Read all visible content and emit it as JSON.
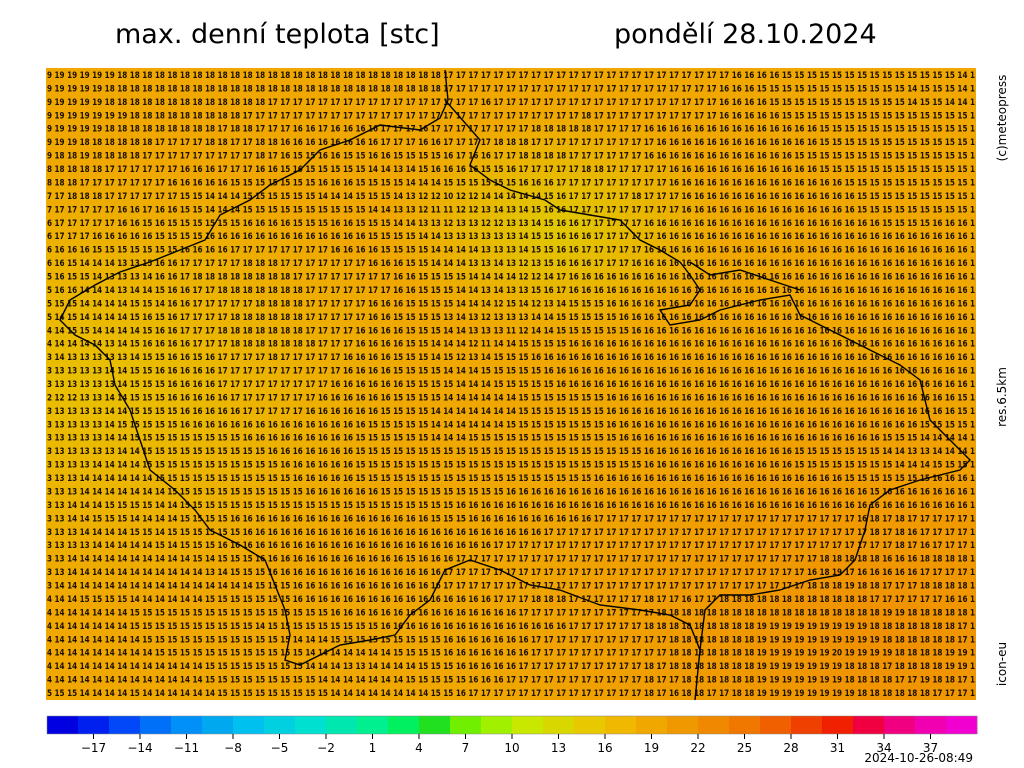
{
  "header": {
    "title": "max. denní teplota [stc]",
    "date": "pondělí 28.10.2024"
  },
  "side": {
    "copyright": "(c)meteopress",
    "resolution": "res.6.5km",
    "model": "icon-eu"
  },
  "footer": {
    "timestamp": "2024-10-26-08:49"
  },
  "map": {
    "rows": [
      "9 19 19 19 19 19 18 18 18 18 18 18 18 18 18 18 18 18 18 18 18 18 18 18 18 18 18 18 18 18 18 18 17 17 17 17 17 17 17 17 17 17 17 17 17 17 17 17 17 17 17 17 17 17 17 16 16 16 16 15 15 15 15 15 15 15 15 15 15 15 15 15 15 14 1",
      "9 19 19 19 19 18 18 18 18 18 18 18 18 18 18 18 18 18 18 18 18 18 18 18 18 18 18 18 18 18 18 18 17 17 17 17 17 17 17 17 17 17 17 17 17 17 17 17 17 17 17 17 17 17 16 16 16 15 15 15 15 15 15 15 15 15 15 15 15 14 15 15 15 14 1",
      "9 19 19 19 19 18 18 18 18 18 18 18 18 18 18 18 18 18 17 17 17 17 17 17 17 17 17 17 17 17 17 17 17 17 17 16 17 17 17 17 17 17 17 17 17 17 17 17 17 17 17 17 17 17 16 16 16 16 15 15 15 15 15 15 15 15 15 15 15 14 15 15 14 14 1",
      "9 19 19 19 19 19 19 18 18 18 18 18 18 18 18 18 17 17 17 17 17 17 17 17 17 17 17 17 17 17 17 17 17 17 17 17 17 17 17 17 17 17 17 18 17 17 17 17 17 17 17 17 17 17 16 16 16 16 16 15 15 15 15 15 15 15 15 15 15 15 15 15 15 15 1",
      "9 19 19 19 19 18 18 18 18 18 18 18 18 18 17 18 18 17 17 17 16 16 17 16 16 16 16 17 17 17 16 17 17 17 17 17 17 17 17 18 18 18 18 18 17 17 17 17 16 16 16 16 16 16 16 16 16 16 16 16 16 16 15 15 15 15 15 15 15 15 15 15 15 15 1",
      "9 19 19 18 18 18 18 18 18 17 17 17 17 18 18 17 17 18 18 16 16 16 16 16 16 16 16 17 17 17 16 16 17 17 17 17 18 18 18 17 17 17 17 17 17 17 17 17 17 16 16 16 16 16 16 16 16 16 16 16 16 16 15 15 15 15 15 15 15 15 15 15 15 15 1",
      "9 18 18 19 18 18 18 18 17 17 17 17 17 17 17 17 17 18 17 16 15 15 16 16 15 15 16 16 15 15 15 15 16 17 16 16 17 17 18 18 18 18 17 17 17 17 17 17 16 16 16 16 16 16 16 16 16 16 16 16 15 15 15 15 15 15 15 15 15 15 15 15 15 15 1",
      "8 18 18 18 18 17 17 17 17 17 17 16 16 16 17 17 17 16 16 15 16 15 15 15 15 15 14 14 13 14 15 16 16 16 16 15 15 16 17 17 17 17 17 18 18 17 17 17 17 17 16 16 16 16 16 16 16 16 16 16 16 16 15 15 15 15 15 15 15 15 15 15 15 15 1",
      "8 18 18 17 17 17 17 17 17 17 16 16 16 16 16 15 15 15 15 15 15 15 16 16 16 15 15 15 15 14 14 14 15 15 15 15 15 15 16 16 16 17 17 17 17 17 17 17 17 17 16 16 16 16 16 16 16 16 16 16 16 16 16 16 15 15 15 15 15 15 15 15 15 15 1",
      "7 17 18 18 18 17 17 17 17 17 17 15 15 14 14 14 15 15 15 15 15 15 14 14 14 15 15 15 14 13 12 12 10 12 12 14 14 14 14 14 15 16 17 17 17 17 17 18 17 17 17 16 16 16 16 16 16 16 16 16 16 16 16 16 16 15 15 15 15 15 15 15 15 15 1",
      "7 17 17 17 17 17 16 16 17 16 16 15 15 14 14 14 15 15 15 15 15 15 15 15 15 15 14 14 13 13 12 11 11 12 12 13 14 13 14 15 16 16 17 17 17 17 17 17 17 17 17 16 16 16 16 16 16 16 16 16 16 16 16 16 16 15 15 15 15 15 15 15 15 15 1",
      "6 17 17 17 17 17 16 16 15 16 15 15 15 15 15 15 16 16 16 16 15 15 15 16 16 15 15 15 14 14 13 13 12 13 13 12 12 13 13 14 15 16 16 17 17 17 17 17 16 16 16 16 16 16 16 16 16 16 16 16 16 16 16 16 16 16 16 15 15 15 15 16 16 16 1",
      "6 17 17 17 16 16 16 16 16 15 15 15 15 16 16 16 16 16 16 16 16 16 16 16 16 16 15 15 15 15 14 14 13 13 13 13 13 13 14 15 15 16 16 16 17 17 17 17 17 16 16 16 16 16 16 16 16 16 16 16 16 16 16 16 16 16 16 16 16 16 16 16 16 16 1",
      "6 16 16 16 15 15 15 15 15 15 15 16 16 16 16 17 17 17 17 17 17 17 17 16 16 16 16 15 15 15 15 14 14 14 14 13 13 13 14 15 15 16 16 17 17 17 17 17 16 16 16 16 16 16 16 16 16 16 16 16 16 16 16 16 16 16 16 16 16 16 16 16 16 16 1",
      "6 16 15 14 14 14 13 13 15 16 16 17 17 17 17 17 18 18 18 17 17 17 17 17 17 17 16 16 16 15 15 14 14 14 13 13 14 13 12 13 15 16 16 16 17 17 17 16 16 16 16 16 16 16 16 16 16 16 16 16 16 16 16 16 16 16 16 16 16 16 16 16 16 16 1",
      "5 16 15 15 14 13 13 13 14 16 16 17 18 18 18 18 18 18 18 18 17 17 17 17 17 17 17 17 16 16 15 15 15 15 14 14 14 14 12 12 14 17 16 16 16 16 16 16 16 16 16 16 16 16 16 16 16 16 16 16 16 16 16 16 16 16 16 16 16 16 16 16 16 16 1",
      "5 16 16 14 14 14 13 14 14 15 16 16 17 17 18 18 18 18 18 18 18 17 17 17 17 17 17 17 16 16 15 15 15 14 14 13 14 13 13 15 16 17 16 16 16 16 16 16 16 16 16 16 16 16 16 16 16 16 16 16 16 16 16 16 16 16 16 16 16 16 16 16 16 16 1",
      "5 15 15 14 14 14 14 15 15 14 16 16 17 17 17 17 17 18 18 18 18 17 17 17 17 17 16 16 16 15 15 15 15 14 14 14 12 15 14 12 13 14 15 15 15 16 16 16 16 16 16 16 16 16 16 16 16 16 16 16 16 16 16 16 16 16 16 16 16 16 16 16 16 16 1",
      "5 14 15 14 14 14 14 15 16 15 16 17 17 17 17 18 18 18 18 18 18 17 17 17 17 17 16 16 15 15 15 15 13 14 13 12 13 13 13 14 14 15 15 15 15 15 16 16 16 16 16 16 16 16 16 16 16 16 16 16 16 16 16 16 16 16 16 16 16 16 16 16 16 16 1",
      "4 14 15 15 14 14 14 14 15 16 16 17 17 17 18 18 18 18 18 18 18 17 17 17 17 16 16 16 16 15 15 15 14 14 13 13 13 11 12 14 14 15 15 15 15 15 15 16 16 16 16 16 16 16 16 16 16 16 16 16 16 16 16 16 16 16 16 16 16 16 16 16 16 16 1",
      "4 14 14 14 14 13 14 15 16 16 16 16 17 17 17 18 18 18 18 18 18 18 17 17 17 16 16 16 16 15 15 14 14 14 12 11 14 14 15 15 15 15 16 16 16 16 16 16 16 16 16 16 16 16 16 16 16 16 16 16 16 16 16 16 16 16 16 16 16 16 16 16 16 16 1",
      "3 14 13 13 13 13 13 14 15 15 16 16 15 16 17 17 17 17 18 17 17 17 17 17 16 16 16 16 15 15 15 14 15 12 13 14 15 15 15 16 16 16 16 16 16 16 16 16 16 16 16 16 16 16 16 16 16 16 16 16 16 16 16 16 16 16 16 16 16 16 16 16 16 16 1",
      "3 13 13 13 13 14 14 15 15 16 16 16 16 16 17 17 17 17 17 17 17 17 17 17 16 16 16 16 15 15 15 15 14 14 14 15 15 15 15 15 16 16 16 16 16 16 16 16 16 16 16 16 16 16 16 16 16 16 16 16 16 16 16 16 16 16 16 16 16 16 16 16 16 16 1",
      "3 13 13 13 13 13 14 15 15 15 16 16 16 16 17 17 17 17 17 17 17 17 17 16 16 16 16 16 16 15 15 15 15 14 14 14 15 15 15 15 15 16 16 16 16 16 16 16 16 16 16 16 16 16 16 16 16 16 16 16 16 16 16 16 16 16 16 16 16 16 16 16 16 16 1",
      "2 12 12 13 13 14 14 15 15 15 16 16 16 16 16 17 17 17 17 17 17 17 16 16 16 16 16 16 15 15 15 15 14 14 14 14 14 14 15 15 15 15 15 15 15 16 16 16 16 16 16 16 16 16 16 16 16 16 16 16 16 16 16 16 16 16 16 16 16 16 16 16 16 15 1",
      "3 13 13 13 13 14 14 15 15 15 15 16 16 16 16 16 17 17 17 17 17 16 16 16 16 16 16 15 15 15 15 14 14 14 14 14 14 14 15 15 15 15 15 15 15 16 16 16 16 16 16 16 16 16 16 16 16 16 16 16 16 16 16 16 16 16 16 16 16 16 16 16 16 15 1",
      "3 13 13 13 13 14 15 15 15 15 15 16 16 16 16 16 16 16 16 16 16 16 16 16 16 16 15 15 15 15 15 14 14 14 14 14 14 15 15 15 15 15 15 15 15 16 16 16 16 16 16 16 16 16 16 16 16 16 16 16 16 16 16 16 16 16 16 16 16 16 15 15 15 15 1",
      "3 13 13 13 13 14 14 15 15 15 15 15 15 15 15 15 16 16 16 16 16 16 16 16 16 15 15 15 15 15 15 14 14 14 15 15 15 15 15 15 15 15 15 15 15 15 16 16 16 16 16 16 16 16 16 16 16 16 16 16 16 16 16 16 16 16 16 15 15 15 14 14 14 14 1",
      "3 13 13 13 13 13 14 14 15 15 15 15 15 15 15 15 15 15 16 16 16 16 16 16 16 15 15 15 15 15 15 15 15 15 15 15 15 15 15 15 15 15 15 15 15 15 15 15 16 16 16 16 16 16 16 16 16 16 16 16 15 15 15 15 15 15 15 14 14 13 13 14 14 14 1",
      "3 13 13 13 14 14 14 14 15 15 15 15 15 15 15 15 15 15 15 16 16 16 16 16 16 15 15 15 15 15 15 15 15 15 15 15 15 15 15 15 15 15 15 15 15 15 15 15 16 16 16 16 16 16 16 16 16 16 16 16 15 15 15 15 15 15 15 15 14 14 14 15 15 15 1",
      "3 13 13 14 14 14 14 14 14 15 15 15 15 15 15 15 15 15 15 15 16 16 16 16 16 15 15 15 15 15 15 15 15 15 15 15 15 15 15 15 15 15 15 15 16 16 16 16 16 16 16 16 16 16 16 16 16 16 16 16 16 16 16 16 15 15 15 15 15 15 15 16 16 16 1",
      "3 13 13 14 14 14 14 14 14 14 15 15 15 15 15 15 15 15 15 15 15 16 16 16 16 16 16 15 15 15 15 15 15 15 15 15 15 16 16 16 16 16 16 16 16 16 16 16 16 16 16 16 16 16 16 16 16 16 16 16 16 16 16 16 16 16 15 16 16 16 16 16 16 16 1",
      "3 13 14 14 14 15 15 15 15 14 14 15 15 15 15 15 15 15 15 15 15 15 15 15 15 15 15 15 15 15 15 15 15 16 16 16 16 16 16 16 16 16 16 16 16 16 16 16 16 16 16 16 16 16 16 16 16 16 16 16 16 16 16 16 16 16 16 16 16 16 16 16 16 16 1",
      "3 13 14 14 15 15 15 14 14 14 14 15 15 15 15 16 16 16 16 16 16 16 16 16 16 16 16 16 16 16 16 15 15 15 16 16 16 16 16 16 16 16 16 16 17 17 17 17 17 17 17 17 17 17 17 17 17 17 17 17 17 17 17 17 17 16 18 17 18 17 17 17 17 17 1",
      "3 13 13 14 14 14 14 15 15 14 15 15 15 15 15 15 16 16 16 16 16 16 16 16 16 16 16 16 16 16 16 16 16 16 16 16 16 16 16 16 17 17 17 17 17 17 17 17 17 17 17 17 17 17 17 17 17 17 17 17 17 17 17 17 17 17 18 17 18 16 17 17 17 17 1",
      "3 13 13 13 14 14 14 14 14 15 14 15 15 15 16 16 16 16 16 16 16 16 16 16 16 16 16 16 16 16 16 16 16 16 16 16 17 17 17 17 17 17 17 17 17 17 17 17 17 17 17 17 17 17 17 17 17 17 17 17 17 17 17 17 17 17 17 17 18 17 16 17 17 17 1",
      "3 13 14 14 14 14 14 14 14 14 14 14 15 14 15 15 15 16 16 16 16 16 16 16 16 16 16 16 16 15 16 16 16 17 17 17 17 17 17 17 17 17 17 17 17 17 17 17 17 17 17 17 17 17 17 17 17 17 17 17 17 17 18 18 18 18 18 16 16 16 18 18 18 18 1",
      "3 13 14 14 14 14 14 14 14 14 14 14 14 13 14 15 15 15 16 16 16 16 16 16 16 16 16 16 16 16 16 16 17 17 17 17 17 17 17 17 17 17 17 17 17 17 17 17 17 17 17 17 17 17 17 17 17 17 17 17 17 16 18 19 17 16 16 16 16 16 17 17 17 17 1",
      "3 14 14 14 14 14 14 14 14 14 14 14 14 14 14 14 14 15 15 15 16 16 16 16 16 16 16 16 16 16 16 16 17 17 17 17 17 17 17 17 17 17 17 17 17 17 17 17 17 17 17 17 17 17 17 17 17 17 17 17 17 18 18 18 19 18 18 17 17 17 18 18 18 18 1",
      "4 14 14 15 15 15 15 14 14 14 14 14 14 15 15 15 15 15 15 15 16 16 16 16 16 16 16 16 16 16 16 16 16 16 16 16 17 17 17 18 18 18 17 17 17 17 17 17 18 17 17 16 17 17 18 18 18 18 18 18 18 18 18 18 18 18 17 17 17 17 17 17 16 16 1",
      "4 14 14 14 14 14 14 15 15 15 15 15 15 15 15 15 15 15 15 15 15 15 15 16 16 16 16 16 16 16 16 16 16 16 16 16 16 16 17 17 17 17 17 17 17 17 17 17 17 18 18 18 18 18 18 18 18 18 18 18 18 18 18 18 18 18 18 19 19 18 18 18 18 18 1",
      "4 14 14 14 14 14 14 15 15 15 15 15 15 15 15 15 15 14 15 15 15 15 15 15 15 15 15 16 16 16 16 16 16 16 16 16 16 16 16 16 16 16 17 17 17 17 17 17 18 18 18 18 18 18 18 18 18 19 19 19 19 19 19 19 19 19 18 18 18 18 18 18 18 17 1",
      "4 14 14 14 14 14 14 14 15 15 15 15 15 15 15 15 15 15 15 15 14 14 14 15 15 15 15 15 15 15 15 15 16 16 16 16 16 16 16 17 17 17 17 17 17 17 17 17 17 17 18 18 18 18 18 18 18 19 19 19 19 19 19 19 19 19 19 18 18 18 18 18 18 17 1",
      "4 14 14 14 14 14 14 14 14 15 15 15 15 15 15 15 15 15 15 15 15 14 14 14 14 14 14 14 15 15 15 15 16 16 16 16 16 16 16 17 17 17 17 17 17 17 17 17 17 17 18 18 18 18 18 18 18 19 19 19 19 19 19 20 19 19 19 19 18 18 18 18 19 19 1",
      "4 14 14 14 14 14 14 14 14 14 14 14 14 15 15 15 15 15 15 15 15 14 14 14 13 13 14 14 14 14 15 15 15 16 16 16 16 16 17 17 17 17 17 17 17 17 17 17 18 17 18 18 18 18 18 18 18 19 19 19 19 19 19 19 18 18 18 17 18 18 18 18 19 19 1",
      "4 14 14 14 14 14 14 14 14 14 14 14 14 15 15 15 15 15 15 15 15 15 14 14 14 14 14 14 14 15 15 15 15 15 16 16 16 17 17 17 17 17 17 17 17 17 17 17 18 17 17 18 18 18 18 18 18 19 19 19 19 19 19 19 18 18 18 18 17 17 19 18 18 17 1",
      "5 15 15 14 14 14 14 15 14 14 14 14 14 14 15 15 15 15 15 15 15 15 15 14 14 14 14 14 14 14 14 15 15 16 17 17 17 17 17 17 17 17 17 17 17 17 17 17 18 17 16 18 18 17 17 18 18 19 19 19 19 19 19 19 19 18 18 18 18 18 18 17 17 17 1"
    ]
  },
  "colorbar": {
    "min": -20,
    "max": 40,
    "colors": [
      "#0000e0",
      "#0020f0",
      "#0048f8",
      "#0070f8",
      "#0090f8",
      "#00a8f0",
      "#00c0f0",
      "#00d0e0",
      "#00e0d0",
      "#00e8b0",
      "#00f090",
      "#00f060",
      "#20e020",
      "#70f000",
      "#a0f000",
      "#c8e800",
      "#d8d800",
      "#e8c800",
      "#f0b800",
      "#f0a800",
      "#f09800",
      "#f08800",
      "#f07800",
      "#f06000",
      "#f04000",
      "#f02000",
      "#f00040",
      "#f00080",
      "#f000b0",
      "#f000d0"
    ],
    "ticks": [
      {
        "value": -17,
        "label": "−17"
      },
      {
        "value": -14,
        "label": "−14"
      },
      {
        "value": -11,
        "label": "−11"
      },
      {
        "value": -8,
        "label": "−8"
      },
      {
        "value": -5,
        "label": "−5"
      },
      {
        "value": -2,
        "label": "−2"
      },
      1,
      4,
      7,
      10,
      13,
      16,
      19,
      22,
      25,
      28,
      31,
      34,
      37
    ]
  }
}
